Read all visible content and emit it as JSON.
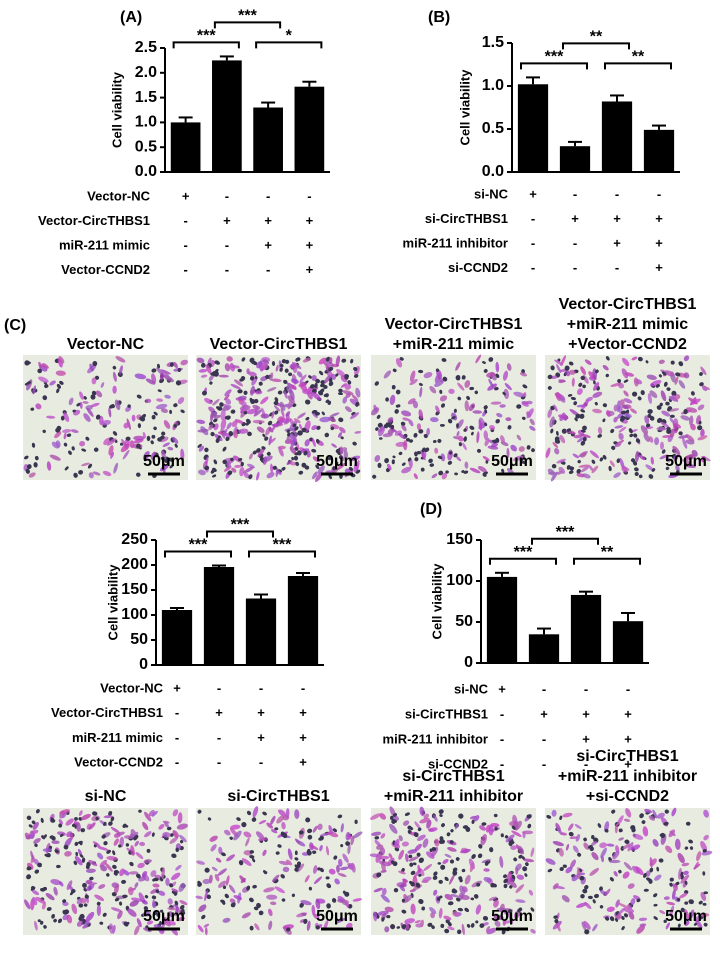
{
  "chart_data": [
    {
      "type": "bar",
      "title": "(A)",
      "ylabel": "Cell viability",
      "color": "#000000",
      "categories": [
        null,
        null,
        null,
        null
      ],
      "values": [
        1.0,
        2.25,
        1.3,
        1.72
      ],
      "errors": [
        0.1,
        0.08,
        0.1,
        0.1
      ],
      "ylim": [
        0,
        2.5
      ],
      "yticks": [
        {
          "value": 0,
          "label": "0.0"
        },
        0.5,
        {
          "value": 1,
          "label": "1.0"
        },
        1.5,
        {
          "value": 2,
          "label": "2.0"
        },
        2.5
      ],
      "annotations": [
        "***",
        "***",
        "*"
      ],
      "conditions": [
        {
          "label": "Vector-NC",
          "values": [
            "+",
            "-",
            "-",
            "-"
          ]
        },
        {
          "label": "Vector-CircTHBS1",
          "values": [
            "-",
            "+",
            "+",
            "+"
          ]
        },
        {
          "label": "miR-211 mimic",
          "values": [
            "-",
            "-",
            "+",
            "+"
          ]
        },
        {
          "label": "Vector-CCND2",
          "values": [
            "-",
            "-",
            "-",
            "+"
          ]
        }
      ]
    },
    {
      "type": "bar",
      "title": "(B)",
      "ylabel": "Cell viability",
      "color": "#000000",
      "categories": [
        null,
        null,
        null,
        null
      ],
      "values": [
        1.02,
        0.3,
        0.82,
        0.49
      ],
      "errors": [
        0.08,
        0.05,
        0.07,
        0.05
      ],
      "ylim": [
        0,
        1.5
      ],
      "yticks": [
        {
          "value": 0,
          "label": "0.0"
        },
        0.5,
        {
          "value": 1,
          "label": "1.0"
        },
        1.5
      ],
      "annotations": [
        "***",
        "**",
        "**"
      ],
      "conditions": [
        {
          "label": "si-NC",
          "values": [
            "+",
            "-",
            "-",
            "-"
          ]
        },
        {
          "label": "si-CircTHBS1",
          "values": [
            "-",
            "+",
            "+",
            "+"
          ]
        },
        {
          "label": "miR-211 inhibitor",
          "values": [
            "-",
            "-",
            "+",
            "+"
          ]
        },
        {
          "label": "si-CCND2",
          "values": [
            "-",
            "-",
            "-",
            "+"
          ]
        }
      ]
    },
    {
      "type": "bar",
      "ylabel": "Cell viability",
      "color": "#000000",
      "categories": [
        null,
        null,
        null,
        null
      ],
      "values": [
        110,
        196,
        133,
        178
      ],
      "errors": [
        4,
        3,
        8,
        6
      ],
      "ylim": [
        0,
        250
      ],
      "yticks": [
        0,
        50,
        100,
        150,
        200,
        250
      ],
      "annotations": [
        "***",
        "***",
        "***"
      ],
      "conditions": [
        {
          "label": "Vector-NC",
          "values": [
            "+",
            "-",
            "-",
            "-"
          ]
        },
        {
          "label": "Vector-CircTHBS1",
          "values": [
            "-",
            "+",
            "+",
            "+"
          ]
        },
        {
          "label": "miR-211 mimic",
          "values": [
            "-",
            "-",
            "+",
            "+"
          ]
        },
        {
          "label": "Vector-CCND2",
          "values": [
            "-",
            "-",
            "-",
            "+"
          ]
        }
      ]
    },
    {
      "type": "bar",
      "title": "(D)",
      "ylabel": "Cell viability",
      "color": "#000000",
      "categories": [
        null,
        null,
        null,
        null
      ],
      "values": [
        105,
        35,
        83,
        51
      ],
      "errors": [
        5,
        7,
        4,
        10
      ],
      "ylim": [
        0,
        150
      ],
      "yticks": [
        0,
        50,
        100,
        150
      ],
      "annotations": [
        "***",
        "***",
        "**"
      ],
      "conditions": [
        {
          "label": "si-NC",
          "values": [
            "+",
            "-",
            "-",
            "-"
          ]
        },
        {
          "label": "si-CircTHBS1",
          "values": [
            "-",
            "+",
            "+",
            "+"
          ]
        },
        {
          "label": "miR-211 inhibitor",
          "values": [
            "-",
            "-",
            "+",
            "+"
          ]
        },
        {
          "label": "si-CCND2",
          "values": [
            "-",
            "-",
            "-",
            "+"
          ]
        }
      ]
    }
  ],
  "micrographs": {
    "label": "(C)",
    "rows": [
      [
        {
          "caption": [
            "Vector-NC"
          ],
          "scale": "50μm"
        },
        {
          "caption": [
            "Vector-CircTHBS1"
          ],
          "scale": "50μm"
        },
        {
          "caption": [
            "Vector-CircTHBS1",
            "+miR-211 mimic"
          ],
          "scale": "50μm"
        },
        {
          "caption": [
            "Vector-CircTHBS1",
            "+miR-211 mimic",
            "+Vector-CCND2"
          ],
          "scale": "50μm"
        }
      ],
      [
        {
          "caption": [
            "si-NC"
          ],
          "scale": "50μm"
        },
        {
          "caption": [
            "si-CircTHBS1"
          ],
          "scale": "50μm"
        },
        {
          "caption": [
            "si-CircTHBS1",
            "+miR-211 inhibitor"
          ],
          "scale": "50μm"
        },
        {
          "caption": [
            "si-CircTHBS1",
            "+miR-211 inhibitor",
            "+si-CCND2"
          ],
          "scale": "50μm"
        }
      ]
    ]
  }
}
